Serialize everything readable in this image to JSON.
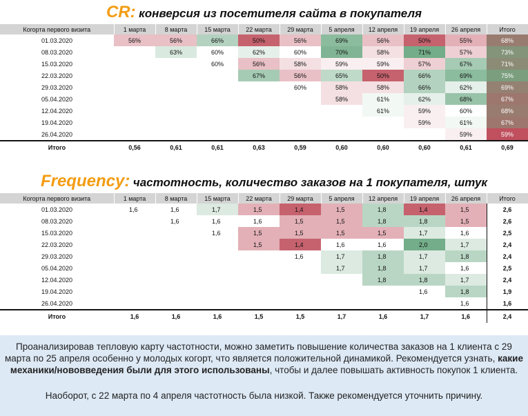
{
  "cr_title": {
    "accent": "CR:",
    "rest": "конверсия из посетителя сайта в покупателя"
  },
  "freq_title": {
    "accent": "Frequency:",
    "rest": "частотность, количество заказов на 1 покупателя, штук"
  },
  "header": [
    "Когорта первого визита",
    "1 марта",
    "8 марта",
    "15 марта",
    "22 марта",
    "29 марта",
    "5 апреля",
    "12 апреля",
    "19 апреля",
    "26 апреля",
    "Итого"
  ],
  "cohorts": [
    "01.03.2020",
    "08.03.2020",
    "15.03.2020",
    "22.03.2020",
    "29.03.2020",
    "05.04.2020",
    "12.04.2020",
    "19.04.2020",
    "26.04.2020"
  ],
  "cr": {
    "rows": [
      [
        "56%",
        "56%",
        "66%",
        "50%",
        "56%",
        "69%",
        "56%",
        "50%",
        "55%"
      ],
      [
        "",
        "63%",
        "60%",
        "62%",
        "60%",
        "70%",
        "58%",
        "71%",
        "57%"
      ],
      [
        "",
        "",
        "60%",
        "56%",
        "58%",
        "59%",
        "59%",
        "57%",
        "67%"
      ],
      [
        "",
        "",
        "",
        "67%",
        "56%",
        "65%",
        "50%",
        "66%",
        "69%"
      ],
      [
        "",
        "",
        "",
        "",
        "60%",
        "58%",
        "58%",
        "66%",
        "62%"
      ],
      [
        "",
        "",
        "",
        "",
        "",
        "58%",
        "61%",
        "62%",
        "68%"
      ],
      [
        "",
        "",
        "",
        "",
        "",
        "",
        "61%",
        "59%",
        "60%"
      ],
      [
        "",
        "",
        "",
        "",
        "",
        "",
        "",
        "59%",
        "61%"
      ],
      [
        "",
        "",
        "",
        "",
        "",
        "",
        "",
        "",
        "59%"
      ]
    ],
    "totals": [
      "68%",
      "73%",
      "71%",
      "75%",
      "69%",
      "67%",
      "68%",
      "67%",
      "59%"
    ],
    "footer_label": "Итого",
    "footer": [
      "0,56",
      "0,61",
      "0,61",
      "0,63",
      "0,59",
      "0,60",
      "0,60",
      "0,60",
      "0,61",
      "0,69"
    ]
  },
  "freq": {
    "rows": [
      [
        "1,6",
        "1,6",
        "1,7",
        "1,5",
        "1,4",
        "1,5",
        "1,8",
        "1,4",
        "1,5"
      ],
      [
        "",
        "1,6",
        "1,6",
        "1,6",
        "1,5",
        "1,5",
        "1,8",
        "1,8",
        "1,5"
      ],
      [
        "",
        "",
        "1,6",
        "1,5",
        "1,5",
        "1,5",
        "1,5",
        "1,7",
        "1,6"
      ],
      [
        "",
        "",
        "",
        "1,5",
        "1,4",
        "1,6",
        "1,6",
        "2,0",
        "1,7"
      ],
      [
        "",
        "",
        "",
        "",
        "1,6",
        "1,7",
        "1,8",
        "1,7",
        "1,8"
      ],
      [
        "",
        "",
        "",
        "",
        "",
        "1,7",
        "1,8",
        "1,7",
        "1,6"
      ],
      [
        "",
        "",
        "",
        "",
        "",
        "",
        "1,8",
        "1,8",
        "1,7"
      ],
      [
        "",
        "",
        "",
        "",
        "",
        "",
        "",
        "1,6",
        "1,8"
      ],
      [
        "",
        "",
        "",
        "",
        "",
        "",
        "",
        "",
        "1,6"
      ]
    ],
    "totals": [
      "2,6",
      "2,6",
      "2,5",
      "2,4",
      "2,4",
      "2,5",
      "2,4",
      "1,9",
      "1,6"
    ],
    "footer_label": "Итого",
    "footer": [
      "1,6",
      "1,6",
      "1,6",
      "1,5",
      "1,5",
      "1,7",
      "1,6",
      "1,7",
      "1,6",
      "2,4"
    ]
  },
  "note": {
    "p1_before": "Проанализировав тепловую карту частотности, можно заметить повышение количества заказов на 1 клиента с 29 марта по 25 апреля особенно у молодых когорт, что является положительной динамикой. Рекомендуется узнать, ",
    "p1_bold": "какие механики/нововведения были для этого использованы",
    "p1_after": ", чтобы и далее повышать активность покупок 1 клиента.",
    "p2": "Наоборот, с 22 марта по 4 апреля частотность была низкой. Также рекомендуется уточнить причину."
  },
  "colors": {
    "low": "#c0505e",
    "mid": "#ffffff",
    "high": "#5a9e74",
    "total_low": "#c0505e",
    "total_high": "#7a9e7e",
    "header_bg": "#d4d4d4",
    "note_bg": "#dde9f5",
    "title_accent": "#f39c12"
  }
}
